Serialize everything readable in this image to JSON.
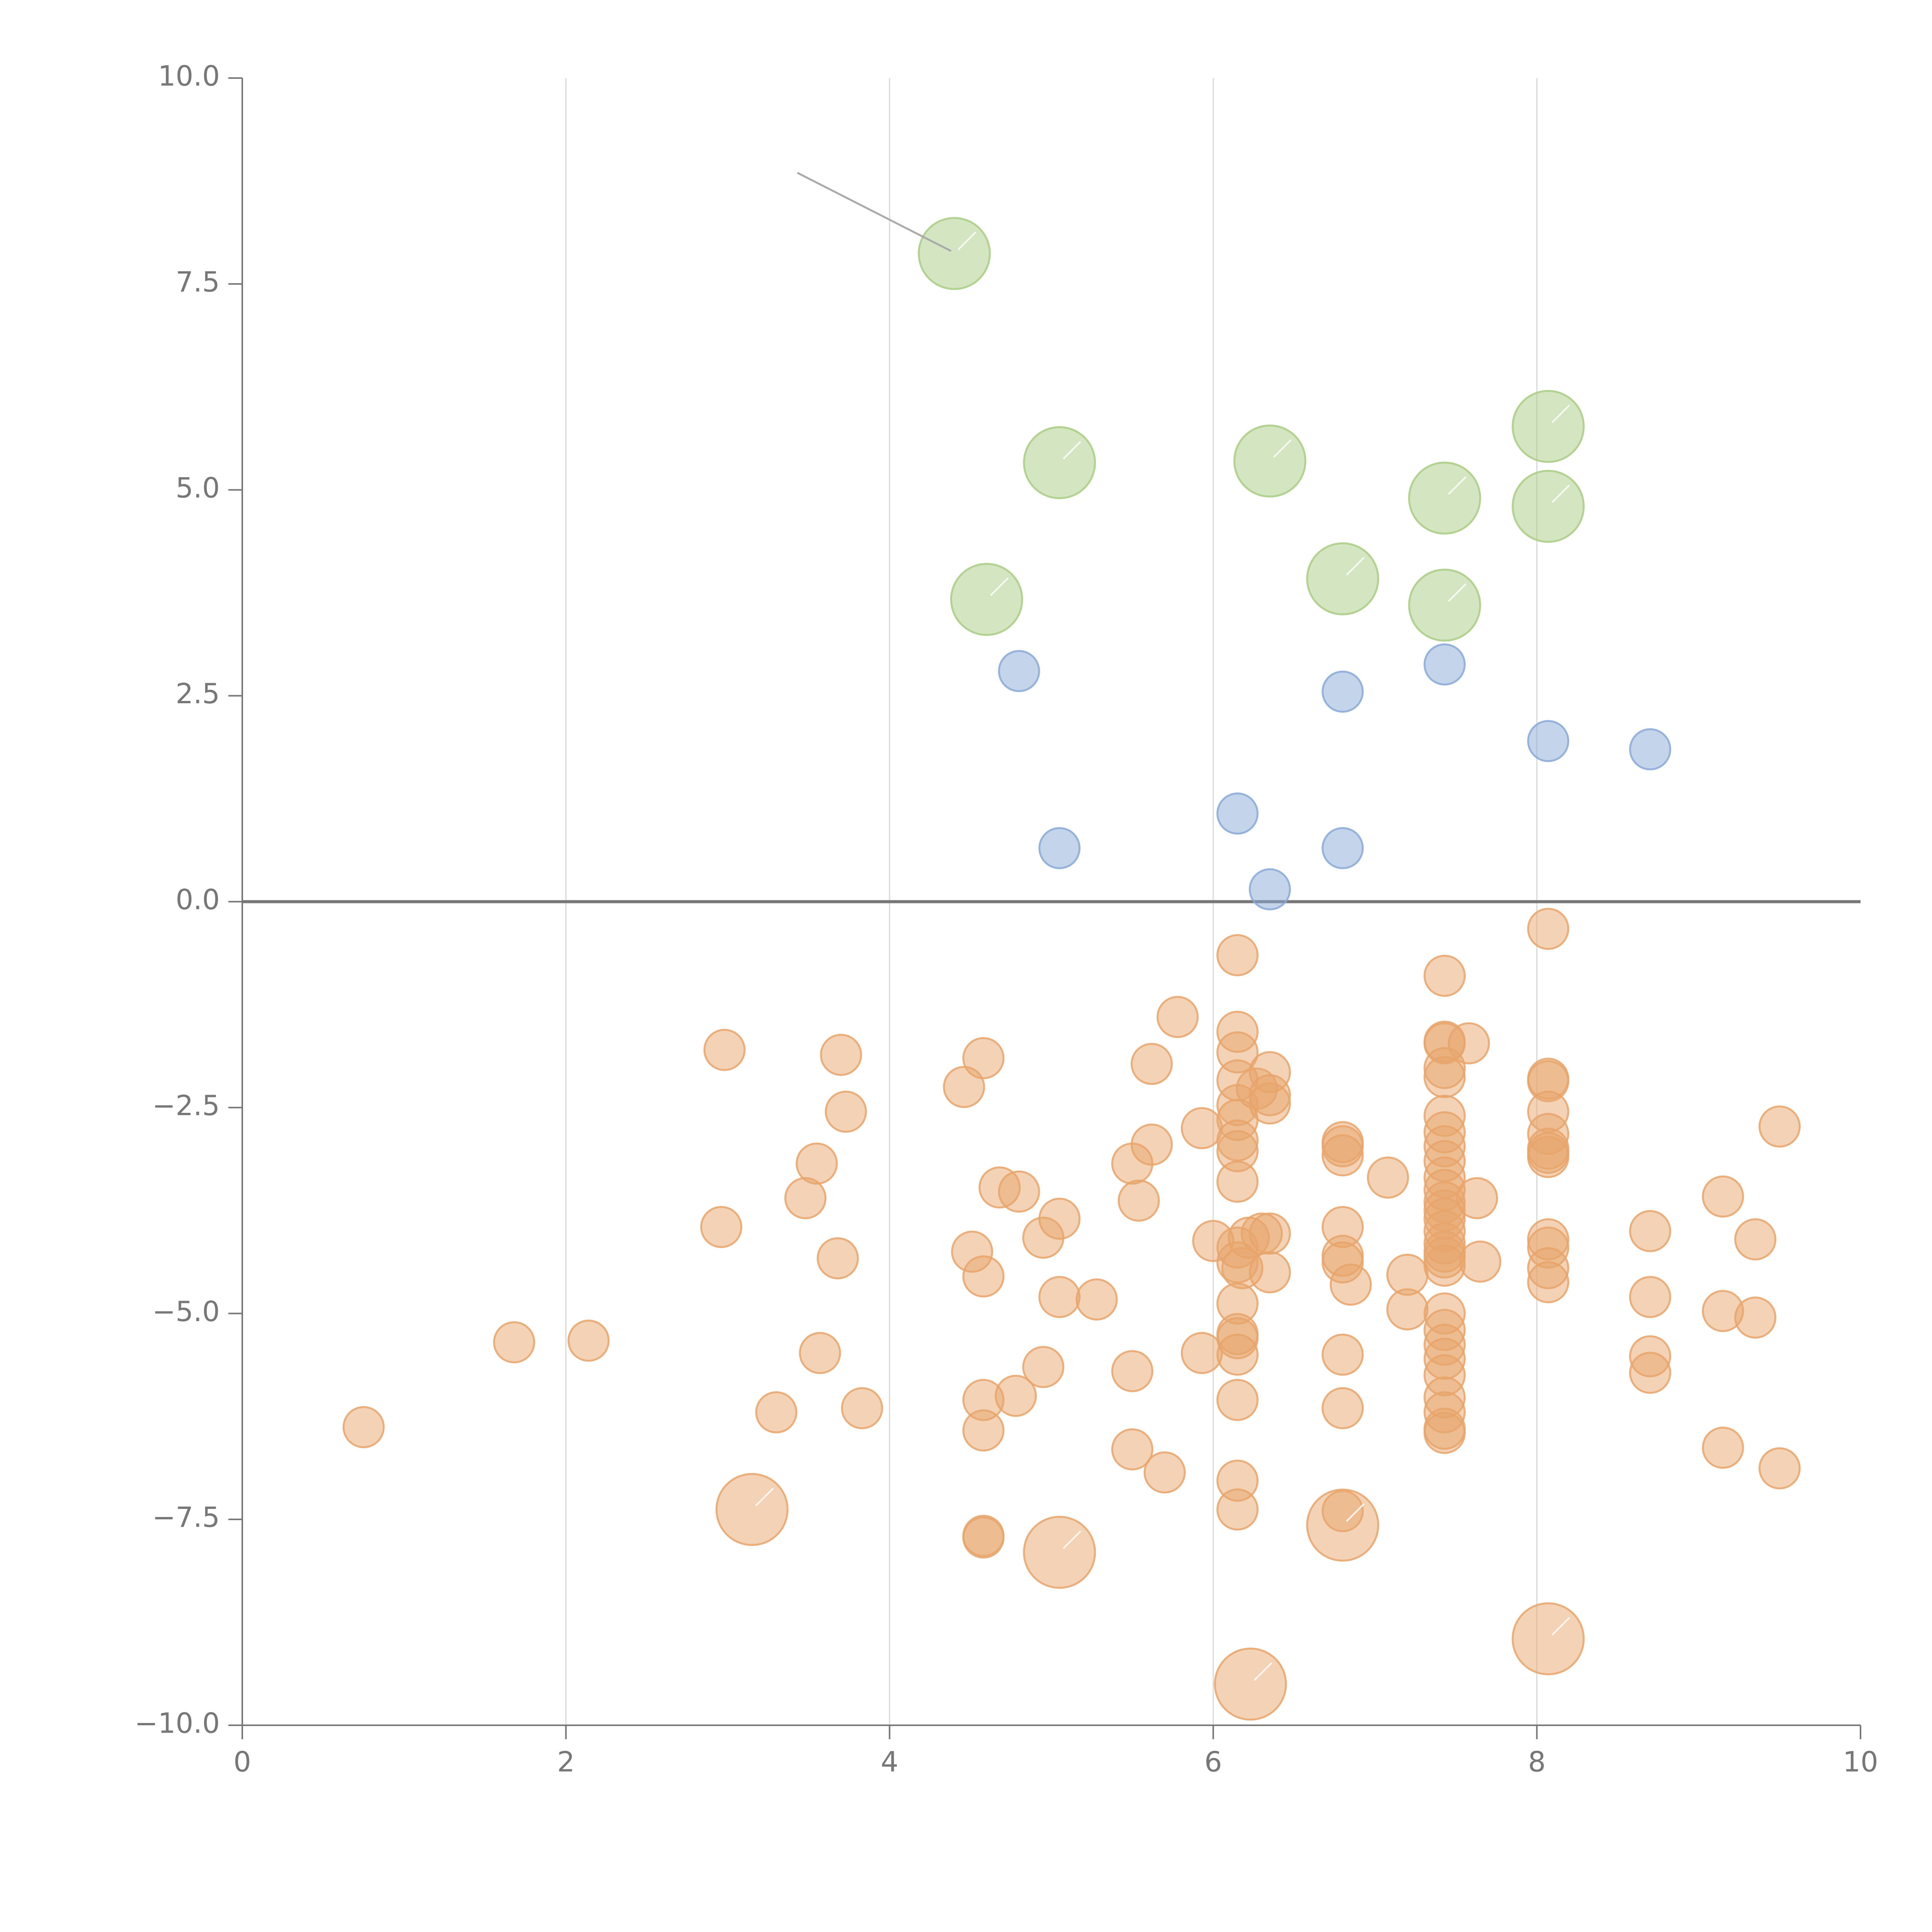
{
  "chart_data": {
    "type": "scatter",
    "title": "",
    "xlabel": "",
    "ylabel": "",
    "xlim": [
      0,
      10
    ],
    "ylim": [
      -10,
      10
    ],
    "grid": "vertical",
    "x_ticks": [
      "0",
      "2",
      "4",
      "6",
      "8",
      "10"
    ],
    "y_ticks": [
      "10.0",
      "7.5",
      "5.0",
      "2.5",
      "0.0",
      "−2.5",
      "−5.0",
      "−7.5",
      "−10.0"
    ],
    "x_tick_values": [
      0,
      2,
      4,
      6,
      8,
      10
    ],
    "y_tick_values": [
      10,
      7.5,
      5,
      2.5,
      0,
      -2.5,
      -5,
      -7.5,
      -10
    ],
    "colors": {
      "green": "#a9cc84",
      "blue": "#8aa9d6",
      "orange": "#e8a56b",
      "axis": "#777777",
      "grid": "#d8d8d8"
    },
    "series": [
      {
        "name": "green",
        "size": "large",
        "points": [
          [
            4.4,
            7.87
          ],
          [
            5.05,
            5.33
          ],
          [
            6.35,
            5.35
          ],
          [
            7.43,
            4.9
          ],
          [
            8.07,
            5.77
          ],
          [
            8.07,
            4.8
          ],
          [
            4.6,
            3.67
          ],
          [
            6.8,
            3.92
          ],
          [
            7.43,
            3.6
          ]
        ]
      },
      {
        "name": "blue",
        "size": "small",
        "points": [
          [
            4.8,
            2.8
          ],
          [
            6.8,
            2.55
          ],
          [
            7.43,
            2.88
          ],
          [
            8.07,
            1.95
          ],
          [
            8.7,
            1.85
          ],
          [
            6.15,
            1.07
          ],
          [
            5.05,
            0.65
          ],
          [
            6.8,
            0.65
          ],
          [
            6.35,
            0.15
          ]
        ]
      },
      {
        "name": "orange",
        "size": "small",
        "points": [
          [
            0.75,
            -6.38
          ],
          [
            1.68,
            -5.35
          ],
          [
            2.14,
            -5.33
          ],
          [
            2.98,
            -1.8
          ],
          [
            2.96,
            -3.95
          ],
          [
            3.3,
            -6.2
          ],
          [
            3.55,
            -3.18
          ],
          [
            3.48,
            -3.6
          ],
          [
            3.57,
            -5.48
          ],
          [
            3.68,
            -4.33
          ],
          [
            3.7,
            -1.86
          ],
          [
            3.73,
            -2.55
          ],
          [
            3.83,
            -6.15
          ],
          [
            4.46,
            -2.25
          ],
          [
            4.51,
            -4.25
          ],
          [
            4.58,
            -1.9
          ],
          [
            4.58,
            -4.55
          ],
          [
            4.58,
            -6.05
          ],
          [
            4.58,
            -6.42
          ],
          [
            4.58,
            -7.7
          ],
          [
            4.58,
            -7.72
          ],
          [
            4.68,
            -3.47
          ],
          [
            4.8,
            -3.52
          ],
          [
            4.78,
            -6.0
          ],
          [
            4.95,
            -4.08
          ],
          [
            5.05,
            -3.85
          ],
          [
            5.05,
            -4.8
          ],
          [
            4.95,
            -5.65
          ],
          [
            5.28,
            -4.83
          ],
          [
            5.5,
            -3.18
          ],
          [
            5.54,
            -3.63
          ],
          [
            5.5,
            -5.7
          ],
          [
            5.5,
            -6.65
          ],
          [
            5.62,
            -1.97
          ],
          [
            5.62,
            -2.95
          ],
          [
            5.7,
            -6.93
          ],
          [
            5.78,
            -1.4
          ],
          [
            5.93,
            -2.75
          ],
          [
            5.93,
            -5.48
          ],
          [
            6.0,
            -4.12
          ],
          [
            6.15,
            -0.65
          ],
          [
            6.15,
            -1.58
          ],
          [
            6.15,
            -1.83
          ],
          [
            6.15,
            -2.17
          ],
          [
            6.15,
            -2.47
          ],
          [
            6.15,
            -2.65
          ],
          [
            6.15,
            -2.9
          ],
          [
            6.15,
            -3.03
          ],
          [
            6.15,
            -3.4
          ],
          [
            6.15,
            -4.2
          ],
          [
            6.15,
            -4.38
          ],
          [
            6.15,
            -4.88
          ],
          [
            6.15,
            -5.25
          ],
          [
            6.15,
            -5.3
          ],
          [
            6.15,
            -5.5
          ],
          [
            6.15,
            -6.05
          ],
          [
            6.15,
            -7.03
          ],
          [
            6.15,
            -7.38
          ],
          [
            6.18,
            -4.45
          ],
          [
            6.22,
            -4.08
          ],
          [
            6.27,
            -2.27
          ],
          [
            6.3,
            -4.03
          ],
          [
            6.35,
            -2.07
          ],
          [
            6.35,
            -2.35
          ],
          [
            6.35,
            -2.45
          ],
          [
            6.35,
            -4.03
          ],
          [
            6.35,
            -4.5
          ],
          [
            6.8,
            -2.92
          ],
          [
            6.8,
            -2.97
          ],
          [
            6.8,
            -3.08
          ],
          [
            6.8,
            -3.95
          ],
          [
            6.8,
            -4.3
          ],
          [
            6.8,
            -4.38
          ],
          [
            6.8,
            -5.5
          ],
          [
            6.8,
            -6.15
          ],
          [
            6.8,
            -7.4
          ],
          [
            6.85,
            -4.65
          ],
          [
            7.08,
            -3.35
          ],
          [
            7.2,
            -4.53
          ],
          [
            7.2,
            -4.95
          ],
          [
            7.43,
            -0.9
          ],
          [
            7.43,
            -1.7
          ],
          [
            7.43,
            -1.72
          ],
          [
            7.43,
            -2.02
          ],
          [
            7.43,
            -2.13
          ],
          [
            7.43,
            -2.6
          ],
          [
            7.43,
            -2.8
          ],
          [
            7.43,
            -2.97
          ],
          [
            7.43,
            -3.15
          ],
          [
            7.43,
            -3.35
          ],
          [
            7.43,
            -3.5
          ],
          [
            7.43,
            -3.65
          ],
          [
            7.43,
            -3.75
          ],
          [
            7.43,
            -3.85
          ],
          [
            7.43,
            -4.0
          ],
          [
            7.43,
            -4.15
          ],
          [
            7.43,
            -4.25
          ],
          [
            7.43,
            -4.32
          ],
          [
            7.43,
            -4.42
          ],
          [
            7.43,
            -5.0
          ],
          [
            7.43,
            -5.2
          ],
          [
            7.43,
            -5.38
          ],
          [
            7.43,
            -5.55
          ],
          [
            7.43,
            -5.75
          ],
          [
            7.43,
            -6.02
          ],
          [
            7.43,
            -6.2
          ],
          [
            7.43,
            -6.4
          ],
          [
            7.43,
            -6.45
          ],
          [
            7.58,
            -1.72
          ],
          [
            7.63,
            -3.6
          ],
          [
            7.65,
            -4.37
          ],
          [
            8.07,
            -0.33
          ],
          [
            8.07,
            -2.15
          ],
          [
            8.07,
            -2.18
          ],
          [
            8.07,
            -2.55
          ],
          [
            8.07,
            -2.82
          ],
          [
            8.07,
            -3.0
          ],
          [
            8.07,
            -3.05
          ],
          [
            8.07,
            -3.1
          ],
          [
            8.07,
            -4.1
          ],
          [
            8.07,
            -4.2
          ],
          [
            8.07,
            -4.45
          ],
          [
            8.07,
            -4.62
          ],
          [
            8.7,
            -4.0
          ],
          [
            8.7,
            -4.8
          ],
          [
            8.7,
            -5.52
          ],
          [
            8.7,
            -5.72
          ],
          [
            9.15,
            -3.58
          ],
          [
            9.15,
            -4.97
          ],
          [
            9.15,
            -6.63
          ],
          [
            9.35,
            -4.1
          ],
          [
            9.35,
            -5.05
          ],
          [
            9.5,
            -2.73
          ],
          [
            9.5,
            -6.88
          ]
        ]
      },
      {
        "name": "orange-large",
        "size": "large",
        "points": [
          [
            3.15,
            -7.38
          ],
          [
            5.05,
            -7.9
          ],
          [
            6.8,
            -7.57
          ],
          [
            8.07,
            -8.95
          ],
          [
            6.23,
            -9.5
          ]
        ]
      }
    ],
    "annotations": [
      {
        "type": "leader-line",
        "from": [
          3.43,
          8.85
        ],
        "to": [
          4.38,
          7.9
        ]
      }
    ]
  }
}
